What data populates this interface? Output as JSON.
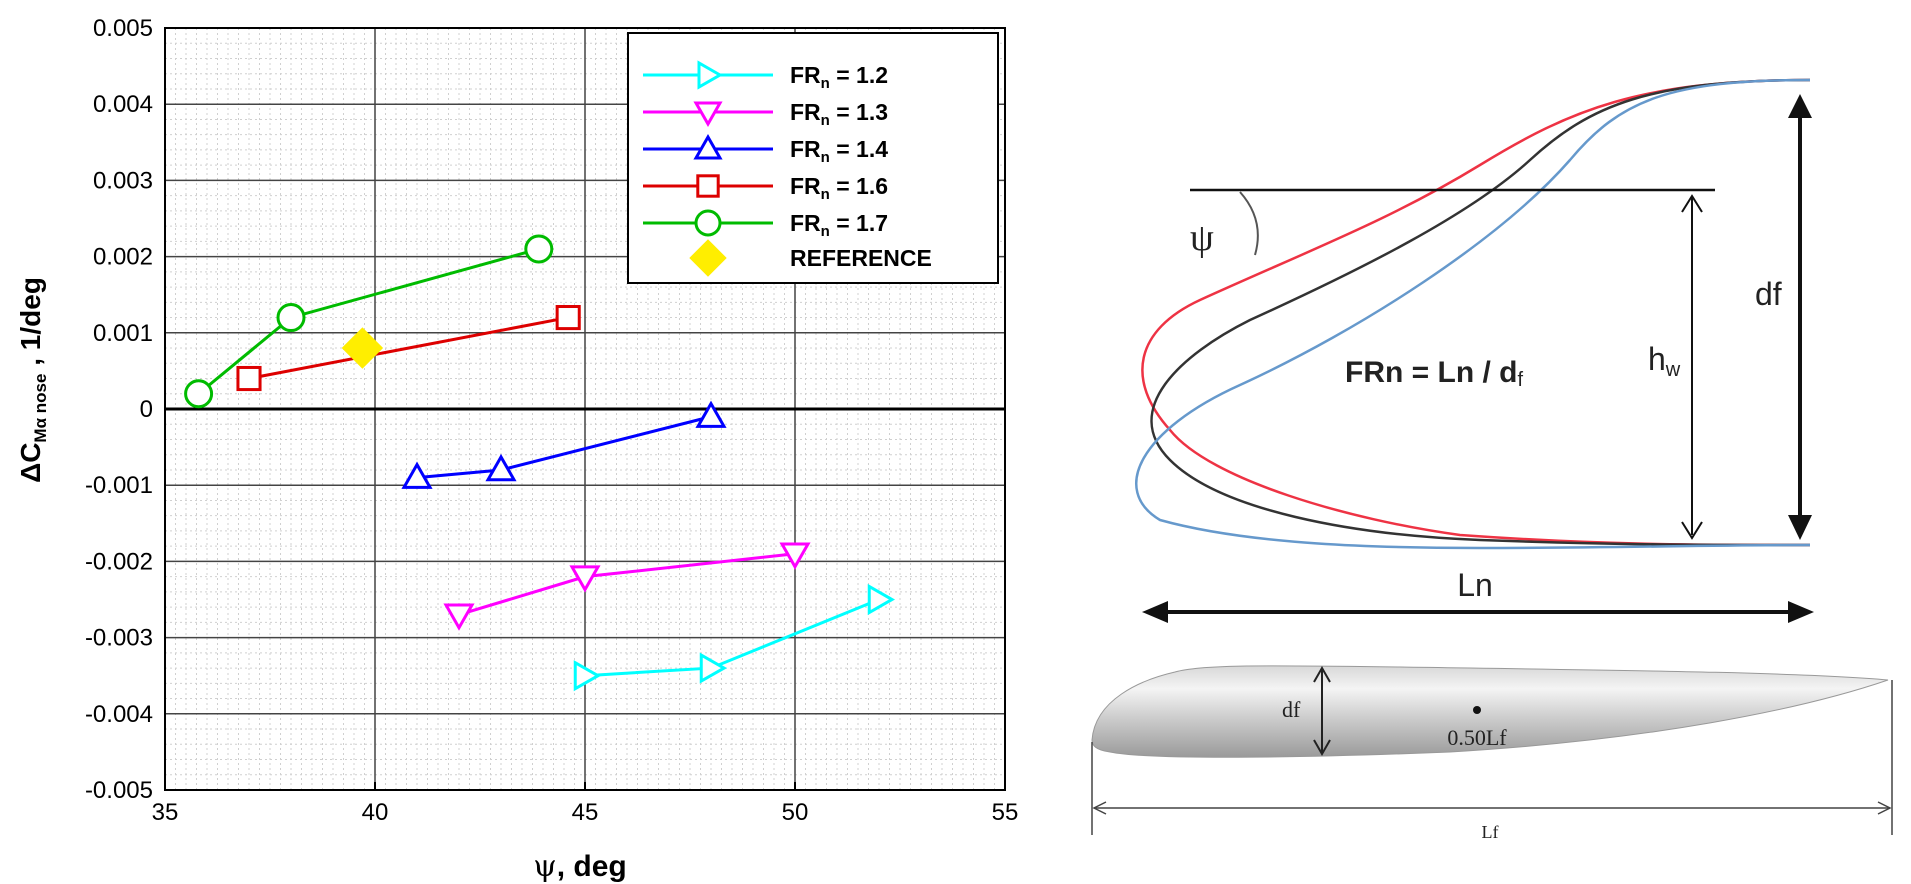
{
  "chart_data": {
    "type": "line",
    "xlabel_symbol": "ψ",
    "xlabel_rest": ", deg",
    "ylabel_prefix": "ΔC",
    "ylabel_sub": "Mα nose",
    "ylabel_rest": " , 1/deg",
    "xlim": [
      35,
      55
    ],
    "ylim": [
      -0.005,
      0.005
    ],
    "x_ticks": [
      "35",
      "40",
      "45",
      "50",
      "55"
    ],
    "y_ticks": [
      "-0.005",
      "-0.004",
      "-0.003",
      "-0.002",
      "-0.001",
      "0",
      "0.001",
      "0.002",
      "0.003",
      "0.004",
      "0.005"
    ],
    "grid": true,
    "legend_position": "top-right",
    "series": [
      {
        "name": "FR",
        "name_sub": "n",
        "name_value": " = 1.2",
        "color": "#00ffff",
        "marker": "triangle-right",
        "x": [
          45,
          48,
          52
        ],
        "y": [
          -0.0035,
          -0.0034,
          -0.0025
        ]
      },
      {
        "name": "FR",
        "name_sub": "n",
        "name_value": " = 1.3",
        "color": "#ff00ff",
        "marker": "triangle-down",
        "x": [
          42,
          45,
          50
        ],
        "y": [
          -0.0027,
          -0.0022,
          -0.0019
        ]
      },
      {
        "name": "FR",
        "name_sub": "n",
        "name_value": " = 1.4",
        "color": "#0000ff",
        "marker": "triangle-up",
        "x": [
          41,
          43,
          48
        ],
        "y": [
          -0.0009,
          -0.0008,
          -0.0001
        ]
      },
      {
        "name": "FR",
        "name_sub": "n",
        "name_value": " = 1.6",
        "color": "#dd0000",
        "marker": "square",
        "x": [
          37,
          44.6
        ],
        "y": [
          0.0004,
          0.0012
        ]
      },
      {
        "name": "FR",
        "name_sub": "n",
        "name_value": " = 1.7",
        "color": "#00bb00",
        "marker": "circle",
        "x": [
          35.8,
          38,
          43.9
        ],
        "y": [
          0.0002,
          0.0012,
          0.0021
        ]
      }
    ],
    "reference": {
      "name": "REFERENCE",
      "color": "#ffee00",
      "marker": "diamond",
      "x": 39.7,
      "y": 0.0008
    }
  },
  "diagram": {
    "psi_label": "ψ",
    "df_label": "df",
    "hw_label": "h",
    "hw_sub": "w",
    "formula": "FRn = Ln / d",
    "formula_sub": "f",
    "ln_label": "Ln",
    "fuselage_df_label": "df",
    "center_label": "0.50Lf",
    "lf_label": "Lf",
    "colors": {
      "red": "#ee3344",
      "black": "#333333",
      "blue": "#6699cc"
    }
  }
}
